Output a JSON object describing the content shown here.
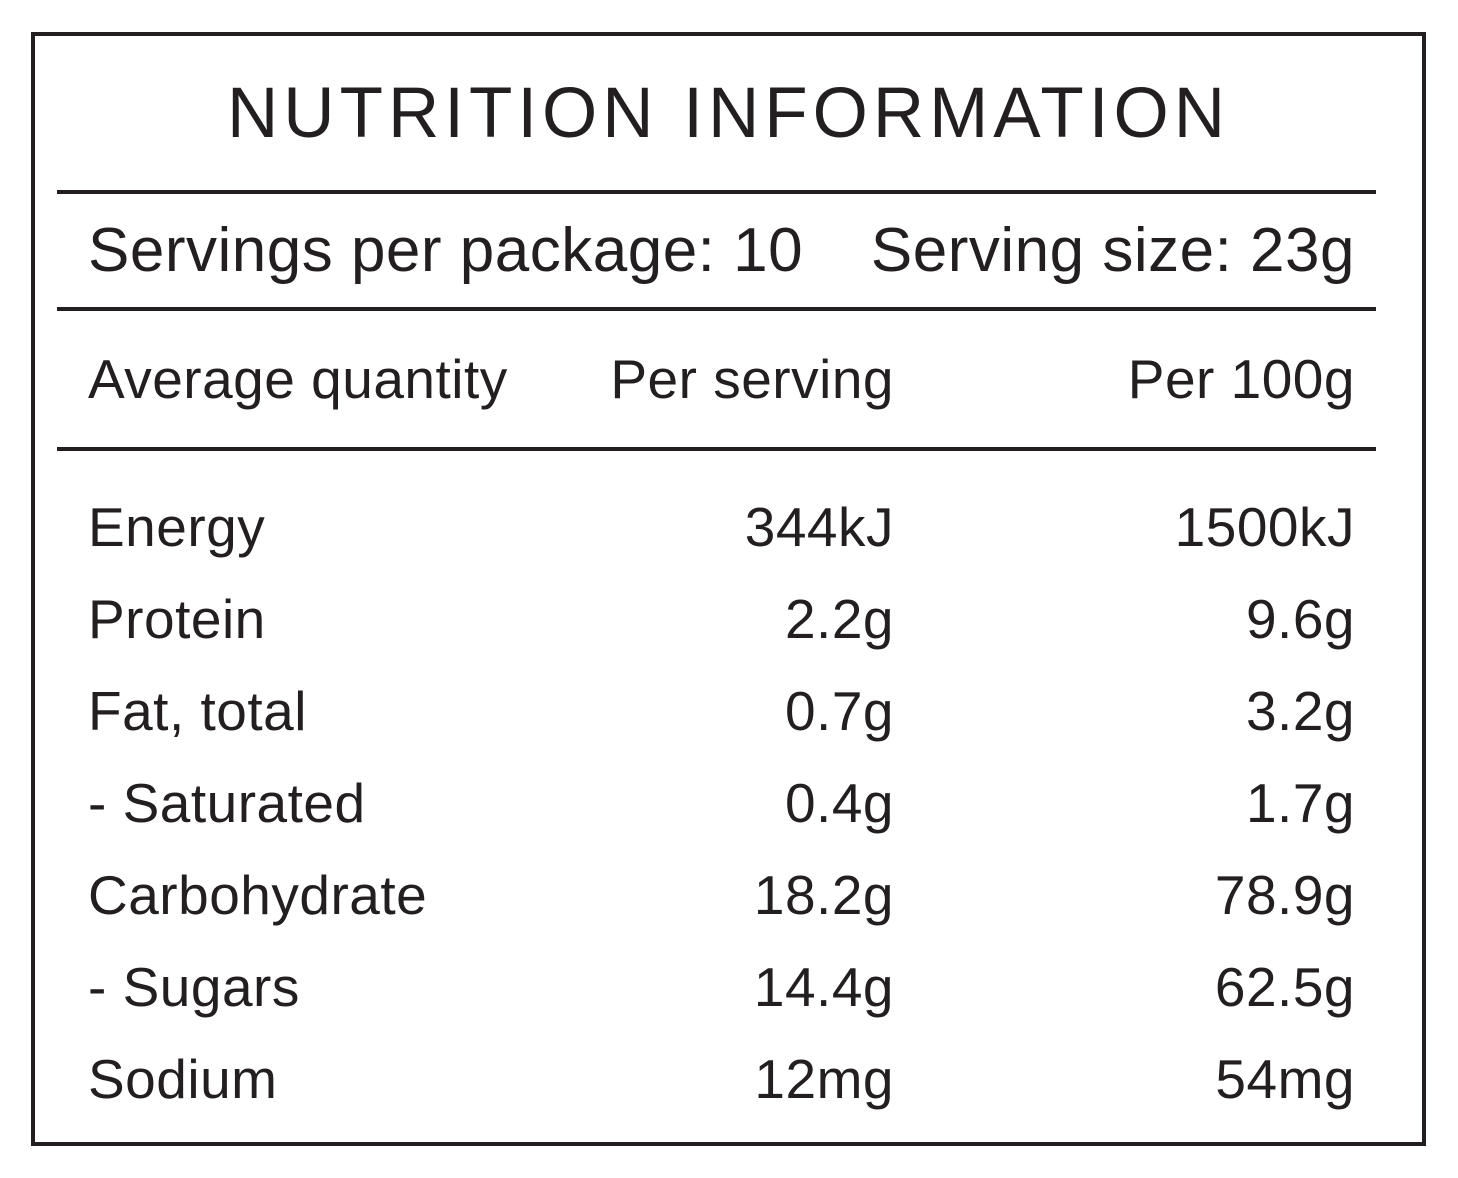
{
  "title": "NUTRITION INFORMATION",
  "servings_line": {
    "servings_per_package": "Servings per package: 10",
    "serving_size": "Serving size: 23g"
  },
  "table": {
    "columns": [
      "Average quantity",
      "Per serving",
      "Per 100g"
    ],
    "rows": [
      {
        "name": "Energy",
        "per_serving": "344kJ",
        "per_100g": "1500kJ"
      },
      {
        "name": "Protein",
        "per_serving": "2.2g",
        "per_100g": "9.6g"
      },
      {
        "name": "Fat, total",
        "per_serving": "0.7g",
        "per_100g": "3.2g"
      },
      {
        "name": "- Saturated",
        "per_serving": "0.4g",
        "per_100g": "1.7g"
      },
      {
        "name": "Carbohydrate",
        "per_serving": "18.2g",
        "per_100g": "78.9g"
      },
      {
        "name": "- Sugars",
        "per_serving": "14.4g",
        "per_100g": "62.5g"
      },
      {
        "name": "Sodium",
        "per_serving": "12mg",
        "per_100g": "54mg"
      }
    ]
  },
  "colors": {
    "text": "#231f20",
    "border": "#231f20",
    "background": "#ffffff"
  }
}
